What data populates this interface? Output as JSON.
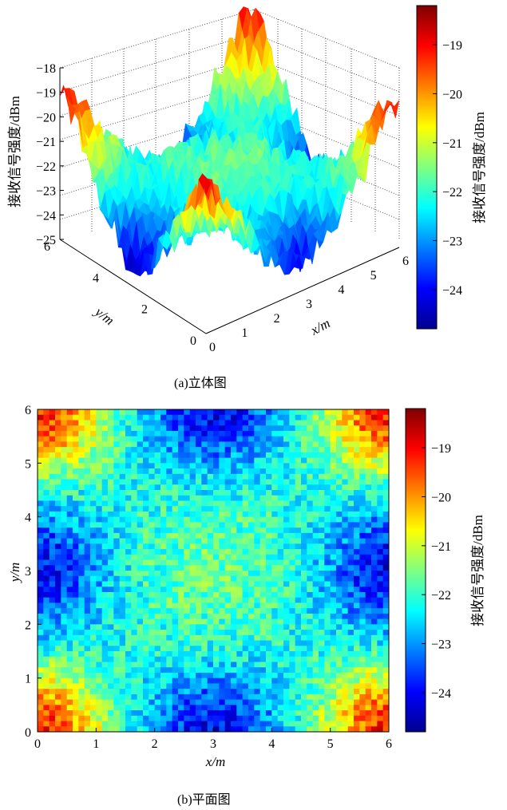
{
  "chart_data": [
    {
      "type": "surface3d",
      "caption": "(a)立体图",
      "zlabel": "接收信号强度/dBm",
      "xlabel": "x/m",
      "ylabel": "y/m",
      "x_ticks": [
        "0",
        "1",
        "2",
        "3",
        "4",
        "5",
        "6"
      ],
      "y_ticks": [
        "0",
        "2",
        "4",
        "6"
      ],
      "z_ticks": [
        "-25",
        "-24",
        "-23",
        "-22",
        "-21",
        "-20",
        "-19",
        "-18"
      ],
      "xlim": [
        0,
        6
      ],
      "ylim": [
        0,
        6
      ],
      "zlim": [
        -25,
        -18
      ],
      "colorbar": {
        "label": "接收信号强度/dBm",
        "ticks": [
          "-19",
          "-20",
          "-21",
          "-22",
          "-23",
          "-24"
        ],
        "range": [
          -24.8,
          -18.2
        ]
      },
      "description_values": {
        "corner_peaks_dBm": [
          -19.5,
          -18.3,
          -19.5,
          -19.5
        ],
        "edge_minima_dBm": -25,
        "center_dBm": -21.5
      }
    },
    {
      "type": "heatmap",
      "caption": "(b)平面图",
      "xlabel": "x/m",
      "ylabel": "y/m",
      "x_ticks": [
        "0",
        "1",
        "2",
        "3",
        "4",
        "5",
        "6"
      ],
      "y_ticks": [
        "0",
        "1",
        "2",
        "3",
        "4",
        "5",
        "6"
      ],
      "xlim": [
        0,
        6
      ],
      "ylim": [
        0,
        6
      ],
      "colorbar": {
        "label": "接收信号强度/dBm",
        "ticks": [
          "-19",
          "-20",
          "-21",
          "-22",
          "-23",
          "-24"
        ],
        "range": [
          -24.8,
          -18.2
        ]
      },
      "description_values": {
        "corner_peaks_dBm": -19,
        "edge_midpoint_minima_dBm": -24,
        "center_dBm": -21
      }
    }
  ]
}
